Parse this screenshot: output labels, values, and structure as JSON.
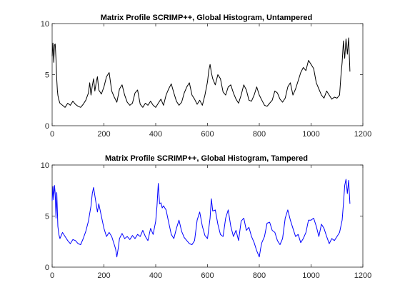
{
  "chart_data": [
    {
      "type": "line",
      "title": "Matrix Profile SCRIMP++, Global Histogram, Untampered",
      "xlabel": "",
      "ylabel": "",
      "xlim": [
        0,
        1200
      ],
      "ylim": [
        0,
        10
      ],
      "xticks": [
        0,
        200,
        400,
        600,
        800,
        1000,
        1200
      ],
      "yticks": [
        0,
        5,
        10
      ],
      "grid": false,
      "color": "#000000",
      "series": [
        {
          "x": [
            0,
            3,
            6,
            9,
            12,
            15,
            18,
            20,
            22,
            25,
            30,
            40,
            50,
            60,
            70,
            80,
            90,
            100,
            110,
            120,
            130,
            140,
            145,
            150,
            155,
            160,
            165,
            170,
            175,
            180,
            190,
            200,
            210,
            220,
            230,
            240,
            250,
            260,
            270,
            280,
            290,
            300,
            310,
            320,
            330,
            340,
            350,
            360,
            370,
            380,
            390,
            400,
            410,
            420,
            430,
            440,
            450,
            460,
            470,
            480,
            490,
            500,
            510,
            520,
            530,
            540,
            550,
            560,
            570,
            580,
            590,
            600,
            605,
            610,
            615,
            620,
            630,
            640,
            650,
            660,
            670,
            680,
            690,
            700,
            710,
            720,
            730,
            740,
            750,
            760,
            770,
            780,
            790,
            800,
            810,
            820,
            830,
            840,
            850,
            860,
            870,
            880,
            890,
            900,
            910,
            920,
            930,
            940,
            950,
            960,
            970,
            980,
            990,
            1000,
            1010,
            1020,
            1030,
            1040,
            1050,
            1060,
            1070,
            1080,
            1090,
            1100,
            1110,
            1115,
            1120,
            1125,
            1130,
            1135,
            1140,
            1145,
            1150
          ],
          "y": [
            6.8,
            8.1,
            6.2,
            7.9,
            8.0,
            6.5,
            4.5,
            3.5,
            3.0,
            2.6,
            2.2,
            2.0,
            1.8,
            2.2,
            2.0,
            2.4,
            2.1,
            1.9,
            1.8,
            2.1,
            2.5,
            3.2,
            4.2,
            3.0,
            3.9,
            4.6,
            3.4,
            4.2,
            4.8,
            3.5,
            3.1,
            3.8,
            4.8,
            5.2,
            3.4,
            2.8,
            2.3,
            3.6,
            4.0,
            3.0,
            2.3,
            2.0,
            2.2,
            3.2,
            3.5,
            2.1,
            1.8,
            2.2,
            2.0,
            2.4,
            2.0,
            1.8,
            2.2,
            2.6,
            2.0,
            3.0,
            3.6,
            4.1,
            3.2,
            2.4,
            2.0,
            2.3,
            3.2,
            3.8,
            4.2,
            3.0,
            2.6,
            2.1,
            2.5,
            2.0,
            3.0,
            4.3,
            5.4,
            6.0,
            5.2,
            4.6,
            4.0,
            5.0,
            4.6,
            3.3,
            3.0,
            3.8,
            4.0,
            3.2,
            2.6,
            2.2,
            3.0,
            4.0,
            3.5,
            2.5,
            2.4,
            3.0,
            3.8,
            3.0,
            2.5,
            2.0,
            1.9,
            2.2,
            2.5,
            3.4,
            3.2,
            2.6,
            2.3,
            2.7,
            3.8,
            4.2,
            3.0,
            3.6,
            4.4,
            5.2,
            5.7,
            5.4,
            6.4,
            6.0,
            5.6,
            4.2,
            3.6,
            3.0,
            2.7,
            3.4,
            3.0,
            2.6,
            2.8,
            2.7,
            3.0,
            4.8,
            6.2,
            8.3,
            6.6,
            8.5,
            7.0,
            8.6,
            5.3
          ]
        }
      ]
    },
    {
      "type": "line",
      "title": "Matrix Profile SCRIMP++, Global Histogram, Tampered",
      "xlabel": "",
      "ylabel": "",
      "xlim": [
        0,
        1200
      ],
      "ylim": [
        0,
        10
      ],
      "xticks": [
        0,
        200,
        400,
        600,
        800,
        1000,
        1200
      ],
      "yticks": [
        0,
        5,
        10
      ],
      "grid": false,
      "color": "#0000ff",
      "series": [
        {
          "x": [
            0,
            3,
            6,
            9,
            12,
            15,
            18,
            22,
            26,
            30,
            40,
            50,
            60,
            70,
            80,
            90,
            100,
            110,
            120,
            130,
            140,
            150,
            155,
            160,
            165,
            170,
            175,
            180,
            190,
            200,
            210,
            220,
            230,
            240,
            245,
            250,
            255,
            260,
            270,
            280,
            290,
            300,
            310,
            320,
            330,
            340,
            350,
            360,
            370,
            380,
            390,
            400,
            405,
            410,
            415,
            420,
            425,
            430,
            440,
            450,
            460,
            470,
            480,
            490,
            500,
            510,
            520,
            530,
            540,
            550,
            560,
            570,
            580,
            590,
            600,
            610,
            615,
            620,
            630,
            640,
            650,
            660,
            670,
            680,
            690,
            700,
            710,
            720,
            730,
            740,
            750,
            760,
            770,
            780,
            790,
            795,
            800,
            805,
            810,
            820,
            830,
            840,
            850,
            860,
            870,
            880,
            890,
            900,
            910,
            920,
            930,
            940,
            950,
            960,
            970,
            980,
            990,
            1000,
            1010,
            1020,
            1030,
            1040,
            1050,
            1060,
            1070,
            1080,
            1090,
            1100,
            1110,
            1120,
            1125,
            1130,
            1135,
            1140,
            1145,
            1150
          ],
          "y": [
            6.5,
            7.9,
            6.6,
            8.0,
            7.2,
            4.8,
            7.3,
            4.0,
            3.2,
            2.8,
            3.4,
            3.0,
            2.6,
            2.3,
            2.7,
            2.6,
            2.3,
            2.2,
            2.8,
            3.5,
            4.5,
            6.0,
            7.2,
            7.8,
            7.0,
            6.2,
            5.4,
            6.2,
            5.0,
            3.8,
            3.0,
            3.4,
            3.0,
            2.2,
            1.8,
            1.0,
            1.8,
            2.8,
            3.3,
            2.8,
            3.0,
            2.7,
            3.1,
            2.8,
            3.2,
            3.0,
            3.6,
            3.0,
            2.6,
            3.8,
            3.2,
            4.5,
            6.0,
            8.2,
            6.2,
            6.3,
            5.8,
            6.0,
            5.6,
            4.4,
            3.2,
            2.8,
            3.8,
            4.6,
            3.5,
            2.9,
            2.6,
            2.3,
            2.2,
            2.6,
            4.6,
            5.4,
            4.0,
            3.1,
            2.8,
            4.8,
            6.7,
            5.5,
            5.6,
            4.2,
            3.2,
            3.0,
            4.8,
            5.6,
            4.0,
            3.0,
            3.6,
            2.6,
            4.5,
            4.8,
            3.6,
            3.9,
            3.0,
            2.4,
            1.6,
            1.3,
            1.0,
            1.8,
            2.4,
            3.0,
            4.3,
            4.4,
            3.6,
            3.4,
            2.6,
            2.2,
            2.8,
            4.8,
            5.6,
            4.6,
            3.8,
            3.0,
            3.2,
            2.4,
            2.8,
            3.4,
            4.6,
            4.6,
            4.8,
            4.0,
            3.0,
            4.2,
            3.8,
            3.0,
            2.3,
            2.8,
            2.6,
            3.0,
            3.4,
            4.6,
            6.2,
            8.0,
            8.6,
            7.2,
            8.5,
            6.2
          ]
        }
      ]
    }
  ]
}
